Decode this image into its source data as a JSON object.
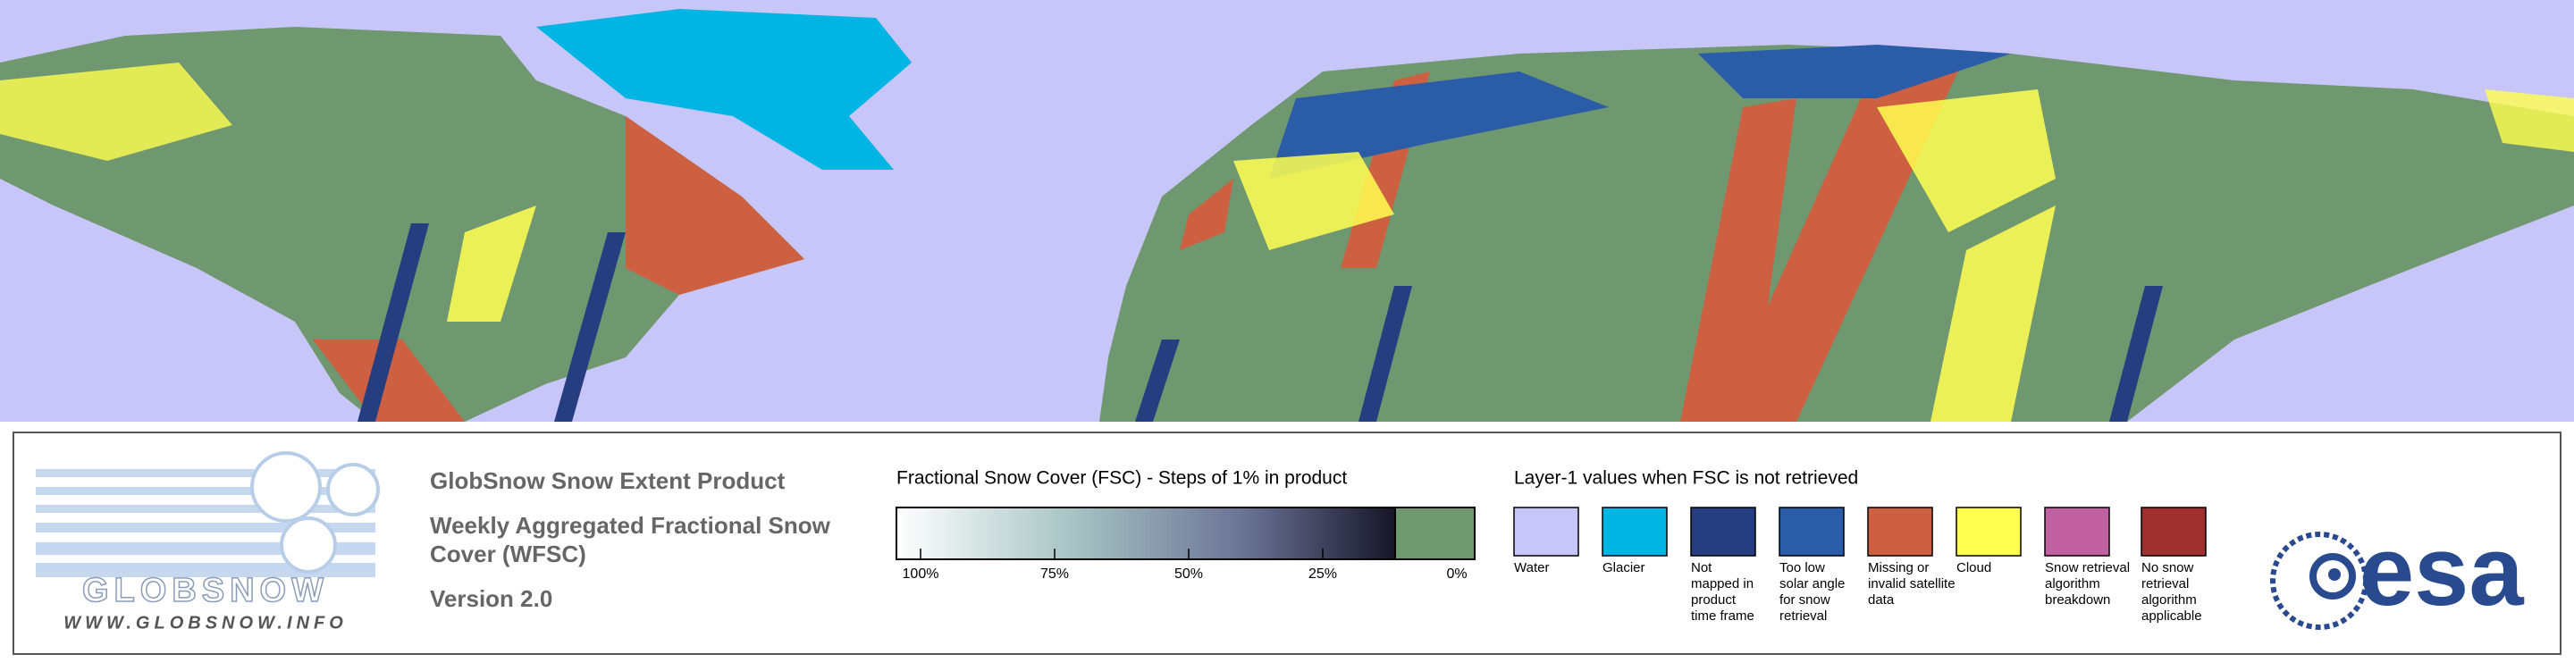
{
  "product": {
    "name": "GlobSnow Snow Extent Product",
    "subtitle_lines": [
      "Weekly Aggregated Fractional Snow",
      "Cover (WFSC)"
    ],
    "version": "Version 2.0"
  },
  "logo": {
    "wordmark": "GLOBSNOW",
    "url": "WWW.GLOBSNOW.INFO"
  },
  "esa_logo": "esa",
  "fsc_legend": {
    "title": "Fractional Snow Cover (FSC) - Steps of 1% in product",
    "ticks": [
      {
        "value": 100,
        "label": "100%"
      },
      {
        "value": 75,
        "label": "75%"
      },
      {
        "value": 50,
        "label": "50%"
      },
      {
        "value": 25,
        "label": "25%"
      },
      {
        "value": 0,
        "label": "0%"
      }
    ]
  },
  "layer1_legend": {
    "title": "Layer-1 values when FSC is not retrieved",
    "items": [
      {
        "color": "#c8c6f8",
        "label_lines": [
          "Water"
        ]
      },
      {
        "color": "#00b4e4",
        "label_lines": [
          "Glacier"
        ]
      },
      {
        "color": "#263e80",
        "label_lines": [
          "Not",
          "mapped in",
          "product",
          "time frame"
        ]
      },
      {
        "color": "#2a5ca8",
        "label_lines": [
          "Too low",
          "solar angle",
          "for snow",
          "retrieval"
        ]
      },
      {
        "color": "#cc6040",
        "label_lines": [
          "Missing or",
          "invalid satellite",
          "data"
        ]
      },
      {
        "color": "#ffff50",
        "label_lines": [
          "Cloud"
        ]
      },
      {
        "color": "#c060a0",
        "label_lines": [
          "Snow retrieval",
          "algorithm",
          "breakdown"
        ]
      },
      {
        "color": "#a03030",
        "label_lines": [
          "No snow",
          "retrieval",
          "algorithm",
          "applicable"
        ]
      }
    ]
  }
}
